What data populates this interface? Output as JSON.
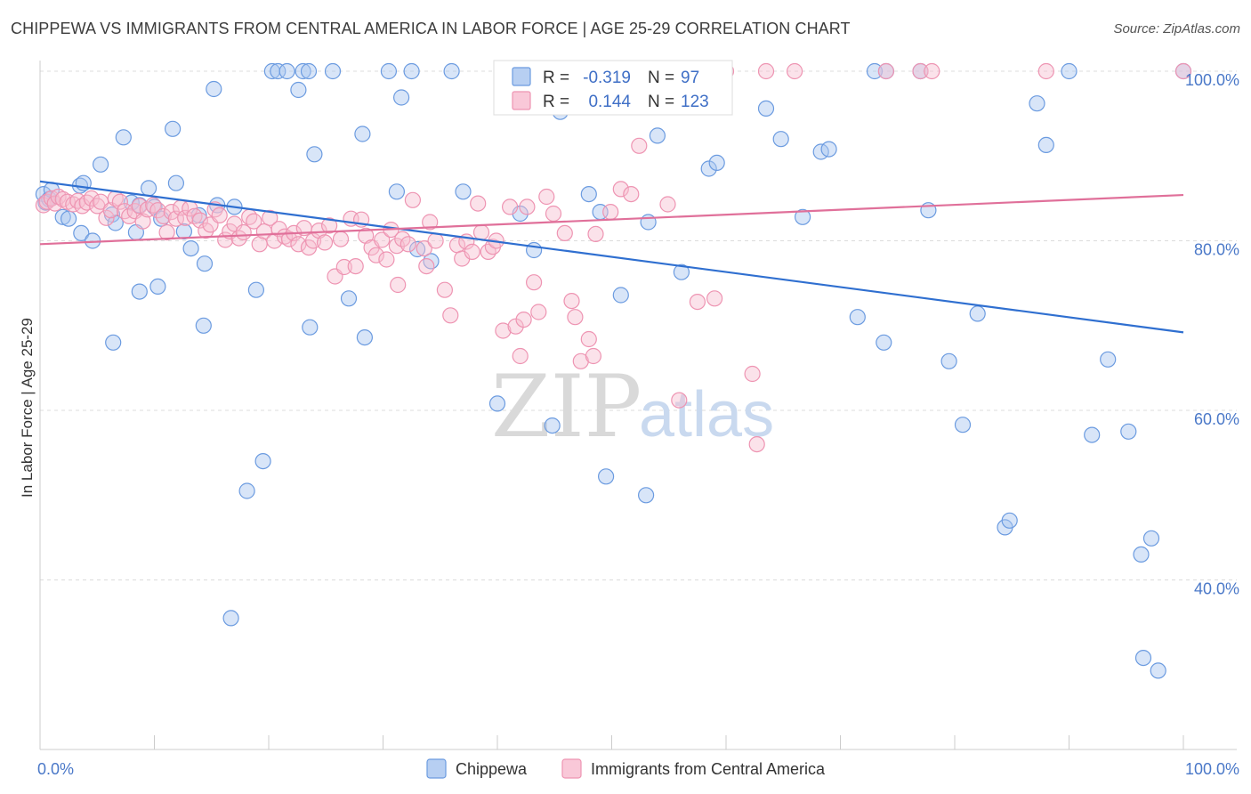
{
  "title": "CHIPPEWA VS IMMIGRANTS FROM CENTRAL AMERICA IN LABOR FORCE | AGE 25-29 CORRELATION CHART",
  "source": "Source: ZipAtlas.com",
  "watermark": {
    "zip": "ZIP",
    "atlas": "atlas"
  },
  "chart_data": {
    "type": "scatter",
    "xlabel": "",
    "ylabel": "In Labor Force | Age 25-29",
    "xlim": [
      0,
      100
    ],
    "ylim": [
      20,
      100
    ],
    "x_tick_labels": [
      {
        "value": 0,
        "label": "0.0%"
      },
      {
        "value": 100,
        "label": "100.0%"
      }
    ],
    "y_tick_labels": [
      {
        "value": 40,
        "label": "40.0%"
      },
      {
        "value": 60,
        "label": "60.0%"
      },
      {
        "value": 80,
        "label": "80.0%"
      },
      {
        "value": 100,
        "label": "100.0%"
      }
    ],
    "grid": true,
    "legend_position": "bottom-center",
    "stats_position": "top-center",
    "series": [
      {
        "name": "Chippewa",
        "color": "#a9c6ef",
        "stroke": "#6b9be0",
        "line_color": "#2f6fd0",
        "R": "-0.319",
        "N": "97",
        "trend": [
          [
            0,
            87.0
          ],
          [
            100,
            69.2
          ]
        ],
        "points": [
          [
            0.3,
            85.5
          ],
          [
            0.5,
            84.5
          ],
          [
            0.8,
            84.9
          ],
          [
            1.0,
            86.0
          ],
          [
            2.0,
            82.8
          ],
          [
            2.5,
            82.6
          ],
          [
            3.5,
            86.5
          ],
          [
            3.8,
            86.8
          ],
          [
            3.6,
            80.9
          ],
          [
            4.6,
            80.0
          ],
          [
            5.3,
            89.0
          ],
          [
            6.3,
            83.1
          ],
          [
            6.6,
            82.1
          ],
          [
            6.4,
            68.0
          ],
          [
            7.3,
            92.2
          ],
          [
            8.0,
            84.5
          ],
          [
            8.4,
            81.0
          ],
          [
            8.7,
            84.2
          ],
          [
            8.7,
            74.0
          ],
          [
            9.5,
            86.2
          ],
          [
            10.0,
            84.0
          ],
          [
            10.3,
            74.6
          ],
          [
            10.6,
            82.6
          ],
          [
            11.6,
            93.2
          ],
          [
            11.9,
            86.8
          ],
          [
            12.6,
            81.1
          ],
          [
            13.2,
            79.1
          ],
          [
            13.9,
            83.0
          ],
          [
            14.4,
            77.3
          ],
          [
            14.3,
            70.0
          ],
          [
            15.5,
            84.2
          ],
          [
            15.2,
            97.9
          ],
          [
            17.0,
            84.0
          ],
          [
            16.7,
            35.5
          ],
          [
            18.1,
            50.5
          ],
          [
            18.9,
            74.2
          ],
          [
            19.5,
            54.0
          ],
          [
            20.3,
            100
          ],
          [
            20.8,
            100
          ],
          [
            21.6,
            100
          ],
          [
            22.6,
            97.8
          ],
          [
            23.0,
            100
          ],
          [
            23.5,
            100
          ],
          [
            23.6,
            69.8
          ],
          [
            24.0,
            90.2
          ],
          [
            25.6,
            100
          ],
          [
            27.0,
            73.2
          ],
          [
            28.2,
            92.6
          ],
          [
            28.4,
            68.6
          ],
          [
            30.5,
            100
          ],
          [
            31.2,
            85.8
          ],
          [
            31.6,
            96.9
          ],
          [
            32.5,
            100
          ],
          [
            33.0,
            79.0
          ],
          [
            34.2,
            77.6
          ],
          [
            36.0,
            100
          ],
          [
            37.0,
            85.8
          ],
          [
            40.0,
            60.8
          ],
          [
            42.0,
            83.2
          ],
          [
            43.2,
            78.9
          ],
          [
            44.8,
            58.2
          ],
          [
            45.5,
            95.2
          ],
          [
            48.0,
            85.5
          ],
          [
            49.0,
            83.4
          ],
          [
            49.5,
            52.2
          ],
          [
            50.8,
            73.6
          ],
          [
            53.0,
            50.0
          ],
          [
            53.2,
            82.2
          ],
          [
            54.0,
            92.4
          ],
          [
            56.1,
            76.3
          ],
          [
            58.5,
            88.5
          ],
          [
            59.2,
            89.2
          ],
          [
            63.5,
            95.6
          ],
          [
            64.8,
            92.0
          ],
          [
            66.7,
            82.8
          ],
          [
            68.3,
            90.5
          ],
          [
            69.0,
            90.8
          ],
          [
            71.5,
            71.0
          ],
          [
            73.0,
            100
          ],
          [
            73.8,
            68.0
          ],
          [
            74.0,
            100
          ],
          [
            77.0,
            100
          ],
          [
            77.7,
            83.6
          ],
          [
            79.5,
            65.8
          ],
          [
            80.7,
            58.3
          ],
          [
            82.0,
            71.4
          ],
          [
            84.4,
            46.2
          ],
          [
            84.8,
            47.0
          ],
          [
            87.2,
            96.2
          ],
          [
            88.0,
            91.3
          ],
          [
            90.0,
            100
          ],
          [
            92.0,
            57.1
          ],
          [
            93.4,
            66.0
          ],
          [
            95.2,
            57.5
          ],
          [
            96.3,
            43.0
          ],
          [
            96.5,
            30.8
          ],
          [
            97.2,
            44.9
          ],
          [
            97.8,
            29.3
          ],
          [
            100,
            100
          ]
        ]
      },
      {
        "name": "Immigrants from Central America",
        "color": "#f6bed0",
        "stroke": "#ee94b2",
        "line_color": "#e0709a",
        "R": "0.144",
        "N": "123",
        "trend": [
          [
            0,
            79.6
          ],
          [
            100,
            85.4
          ]
        ],
        "points": [
          [
            0.3,
            84.2
          ],
          [
            0.6,
            84.6
          ],
          [
            1.0,
            85.0
          ],
          [
            1.3,
            84.4
          ],
          [
            1.6,
            85.2
          ],
          [
            2.0,
            84.9
          ],
          [
            2.4,
            84.6
          ],
          [
            2.9,
            84.3
          ],
          [
            3.3,
            84.7
          ],
          [
            3.7,
            84.1
          ],
          [
            4.1,
            84.5
          ],
          [
            4.5,
            85.0
          ],
          [
            5.0,
            84.1
          ],
          [
            5.3,
            84.6
          ],
          [
            5.8,
            82.7
          ],
          [
            6.2,
            83.6
          ],
          [
            6.6,
            85.0
          ],
          [
            7.0,
            84.6
          ],
          [
            7.4,
            83.5
          ],
          [
            7.8,
            82.9
          ],
          [
            8.3,
            83.5
          ],
          [
            8.7,
            84.1
          ],
          [
            9.0,
            82.3
          ],
          [
            9.4,
            83.7
          ],
          [
            9.9,
            84.2
          ],
          [
            10.3,
            83.6
          ],
          [
            10.8,
            82.9
          ],
          [
            11.1,
            81.0
          ],
          [
            11.5,
            83.4
          ],
          [
            11.9,
            82.6
          ],
          [
            12.3,
            83.9
          ],
          [
            12.7,
            82.7
          ],
          [
            13.1,
            83.8
          ],
          [
            13.5,
            82.9
          ],
          [
            14.0,
            82.4
          ],
          [
            14.5,
            81.2
          ],
          [
            14.9,
            81.9
          ],
          [
            15.3,
            83.7
          ],
          [
            15.7,
            83.0
          ],
          [
            16.2,
            80.1
          ],
          [
            16.6,
            81.1
          ],
          [
            17.0,
            82.0
          ],
          [
            17.4,
            80.3
          ],
          [
            17.8,
            81.0
          ],
          [
            18.3,
            82.8
          ],
          [
            18.7,
            82.3
          ],
          [
            19.2,
            79.6
          ],
          [
            19.6,
            81.1
          ],
          [
            20.1,
            82.7
          ],
          [
            20.5,
            80.0
          ],
          [
            20.9,
            81.4
          ],
          [
            21.4,
            80.5
          ],
          [
            21.8,
            80.2
          ],
          [
            22.2,
            80.9
          ],
          [
            22.6,
            79.6
          ],
          [
            23.1,
            81.5
          ],
          [
            23.5,
            79.2
          ],
          [
            23.9,
            80.0
          ],
          [
            24.4,
            81.2
          ],
          [
            24.9,
            79.8
          ],
          [
            25.3,
            81.8
          ],
          [
            25.8,
            75.8
          ],
          [
            26.3,
            80.2
          ],
          [
            26.6,
            76.9
          ],
          [
            27.2,
            82.6
          ],
          [
            27.6,
            77.0
          ],
          [
            28.1,
            82.5
          ],
          [
            28.5,
            80.6
          ],
          [
            29.0,
            79.2
          ],
          [
            29.4,
            78.3
          ],
          [
            29.9,
            80.1
          ],
          [
            30.3,
            77.8
          ],
          [
            30.7,
            81.3
          ],
          [
            31.2,
            79.4
          ],
          [
            31.3,
            74.8
          ],
          [
            31.7,
            80.2
          ],
          [
            32.6,
            84.8
          ],
          [
            32.2,
            79.6
          ],
          [
            33.6,
            79.1
          ],
          [
            34.1,
            82.2
          ],
          [
            33.8,
            77.0
          ],
          [
            34.6,
            80.0
          ],
          [
            35.4,
            74.2
          ],
          [
            35.9,
            71.2
          ],
          [
            36.5,
            79.5
          ],
          [
            36.9,
            77.9
          ],
          [
            37.3,
            79.9
          ],
          [
            37.8,
            78.7
          ],
          [
            38.3,
            84.4
          ],
          [
            38.6,
            81.0
          ],
          [
            39.2,
            78.7
          ],
          [
            39.6,
            79.3
          ],
          [
            39.9,
            80.0
          ],
          [
            40.5,
            69.4
          ],
          [
            41.1,
            84.0
          ],
          [
            41.6,
            69.9
          ],
          [
            42.0,
            66.4
          ],
          [
            42.3,
            70.7
          ],
          [
            42.6,
            84.0
          ],
          [
            43.2,
            75.1
          ],
          [
            43.6,
            71.6
          ],
          [
            44.3,
            85.2
          ],
          [
            44.9,
            83.2
          ],
          [
            45.9,
            80.9
          ],
          [
            46.5,
            72.9
          ],
          [
            46.8,
            71.0
          ],
          [
            47.3,
            65.8
          ],
          [
            48.0,
            68.4
          ],
          [
            48.4,
            66.4
          ],
          [
            48.6,
            80.8
          ],
          [
            49.9,
            83.4
          ],
          [
            50.8,
            86.1
          ],
          [
            51.7,
            85.5
          ],
          [
            52.4,
            91.2
          ],
          [
            53.2,
            100
          ],
          [
            54.9,
            84.3
          ],
          [
            55.9,
            61.2
          ],
          [
            57.5,
            72.8
          ],
          [
            59.0,
            73.2
          ],
          [
            60.0,
            100
          ],
          [
            62.3,
            64.3
          ],
          [
            62.7,
            56.0
          ],
          [
            63.5,
            100
          ],
          [
            66.0,
            100
          ],
          [
            74.0,
            100
          ],
          [
            77.0,
            100
          ],
          [
            78.0,
            100
          ],
          [
            88.0,
            100
          ],
          [
            100,
            100
          ]
        ]
      }
    ]
  },
  "legend": [
    {
      "label": "Chippewa",
      "fill": "#b7cff2",
      "stroke": "#6b9be0"
    },
    {
      "label": "Immigrants from Central America",
      "fill": "#f9c8d8",
      "stroke": "#ee94b2"
    }
  ],
  "stats": [
    {
      "r_label": "R =",
      "r_value": "-0.319",
      "n_label": "N =",
      "n_value": "97",
      "fill": "#b7cff2",
      "stroke": "#6b9be0"
    },
    {
      "r_label": "R =",
      "r_value": "0.144",
      "n_label": "N =",
      "n_value": "123",
      "fill": "#f9c8d8",
      "stroke": "#ee94b2"
    }
  ]
}
